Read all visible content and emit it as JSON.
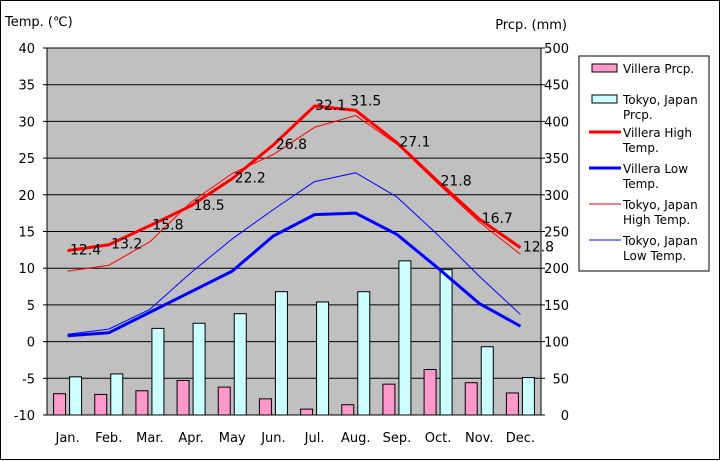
{
  "chart_data": {
    "type": "bar+line",
    "y_left_label": "Temp. (℃)",
    "y_right_label": "Prcp. (mm)",
    "y_left_range": [
      -10,
      40
    ],
    "y_left_ticks": [
      "40",
      "35",
      "30",
      "25",
      "20",
      "15",
      "10",
      "5",
      "0",
      "-5",
      "-10"
    ],
    "y_right_range": [
      0,
      500
    ],
    "y_right_ticks": [
      "500",
      "450",
      "400",
      "350",
      "300",
      "250",
      "200",
      "150",
      "100",
      "50",
      "0"
    ],
    "categories": [
      "Jan.",
      "Feb.",
      "Mar.",
      "Apr.",
      "May",
      "Jun.",
      "Jul.",
      "Aug.",
      "Sep.",
      "Oct.",
      "Nov.",
      "Dec."
    ],
    "grid": true,
    "legend_position": "right",
    "bar_series": [
      {
        "name": "Villera Prcp.",
        "color": "#ff99cc",
        "values": [
          29,
          28,
          33,
          47,
          38,
          22,
          8,
          14,
          42,
          62,
          44,
          30
        ]
      },
      {
        "name": "Tokyo, Japan Prcp.",
        "color": "#ccffff",
        "values": [
          52,
          56,
          118,
          125,
          138,
          168,
          154,
          168,
          210,
          198,
          93,
          51
        ]
      }
    ],
    "line_series": [
      {
        "name": "Villera High Temp.",
        "color": "#ff0000",
        "width": 3,
        "values": [
          12.4,
          13.2,
          15.8,
          18.5,
          22.2,
          26.8,
          32.1,
          31.5,
          27.1,
          21.8,
          16.7,
          12.8
        ]
      },
      {
        "name": "Villera Low Temp.",
        "color": "#0000ff",
        "width": 3,
        "values": [
          0.8,
          1.2,
          4.0,
          6.8,
          9.6,
          14.4,
          17.3,
          17.5,
          14.6,
          10.0,
          5.2,
          2.1
        ]
      },
      {
        "name": "Tokyo, Japan High Temp.",
        "color": "#ff0000",
        "width": 1,
        "values": [
          9.6,
          10.4,
          13.6,
          19.0,
          22.9,
          25.5,
          29.2,
          30.8,
          26.9,
          21.5,
          16.3,
          11.9
        ]
      },
      {
        "name": "Tokyo, Japan Low Temp.",
        "color": "#0000ff",
        "width": 1,
        "values": [
          1.0,
          1.7,
          4.4,
          9.4,
          14.0,
          18.0,
          21.8,
          23.0,
          19.7,
          14.5,
          8.9,
          3.7
        ]
      }
    ],
    "data_labels": [
      "12.4",
      "13.2",
      "15.8",
      "18.5",
      "22.2",
      "26.8",
      "32.1",
      "31.5",
      "27.1",
      "21.8",
      "16.7",
      "12.8"
    ],
    "legend": [
      {
        "label": [
          "Villera Prcp."
        ],
        "kind": "bar",
        "color": "#ff99cc"
      },
      {
        "label": [
          "Tokyo, Japan",
          "Prcp."
        ],
        "kind": "bar",
        "color": "#ccffff"
      },
      {
        "label": [
          "Villera High",
          "Temp."
        ],
        "kind": "line",
        "color": "#ff0000",
        "width": 3
      },
      {
        "label": [
          "Villera Low",
          "Temp."
        ],
        "kind": "line",
        "color": "#0000ff",
        "width": 3
      },
      {
        "label": [
          "Tokyo, Japan",
          "High Temp."
        ],
        "kind": "line",
        "color": "#ff0000",
        "width": 1
      },
      {
        "label": [
          "Tokyo, Japan",
          "Low Temp."
        ],
        "kind": "line",
        "color": "#0000ff",
        "width": 1
      }
    ]
  }
}
